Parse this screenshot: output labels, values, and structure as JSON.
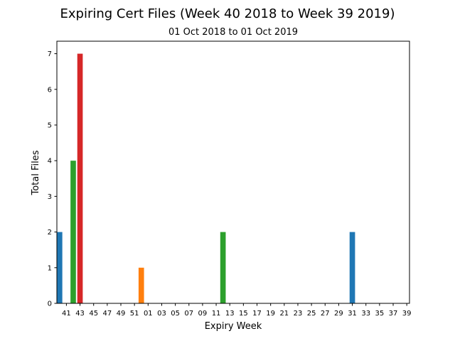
{
  "chart_data": {
    "type": "bar",
    "title": "Expiring Cert Files (Week 40 2018 to Week 39 2019)",
    "subtitle": "01 Oct 2018 to 01 Oct 2019",
    "xlabel": "Expiry Week",
    "ylabel": "Total Files",
    "ylim": [
      0,
      7.35
    ],
    "yticks": [
      0,
      1,
      2,
      3,
      4,
      5,
      6,
      7
    ],
    "xticks": [
      "41",
      "43",
      "45",
      "47",
      "49",
      "51",
      "01",
      "03",
      "05",
      "07",
      "09",
      "11",
      "13",
      "15",
      "17",
      "19",
      "21",
      "23",
      "25",
      "27",
      "29",
      "31",
      "33",
      "35",
      "37",
      "39"
    ],
    "xtick_positions": [
      41,
      43,
      45,
      47,
      49,
      51,
      53,
      55,
      57,
      59,
      61,
      63,
      65,
      67,
      69,
      71,
      73,
      75,
      77,
      79,
      81,
      83,
      85,
      87,
      89,
      91
    ],
    "xlim": [
      39.6,
      91.4
    ],
    "grid": false,
    "bars": [
      {
        "week": 40,
        "value": 2,
        "color": "#1f77b4"
      },
      {
        "week": 42,
        "value": 4,
        "color": "#2ca02c"
      },
      {
        "week": 43,
        "value": 7,
        "color": "#d62728"
      },
      {
        "week": 52,
        "value": 1,
        "color": "#ff7f0e"
      },
      {
        "week": 64,
        "value": 2,
        "color": "#2ca02c"
      },
      {
        "week": 83,
        "value": 2,
        "color": "#1f77b4"
      }
    ]
  }
}
